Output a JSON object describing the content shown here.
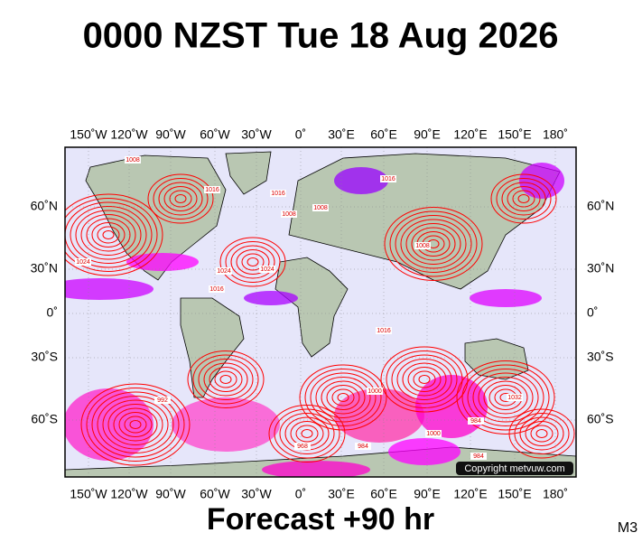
{
  "title": "0000 NZST Tue 18 Aug 2026",
  "lon_labels": [
    "150˚W",
    "120˚W",
    "90˚W",
    "60˚W",
    "30˚W",
    "0˚",
    "30˚E",
    "60˚E",
    "90˚E",
    "120˚E",
    "150˚E",
    "180˚"
  ],
  "lat_labels": [
    "60˚N",
    "30˚N",
    "0˚",
    "30˚S",
    "60˚S"
  ],
  "isobar_labels": [
    "1008",
    "1016",
    "1008",
    "1016",
    "1024",
    "1024",
    "1016",
    "1008",
    "1016",
    "1024",
    "1016",
    "1008",
    "1032",
    "1000",
    "984",
    "992",
    "968",
    "984",
    "1000",
    "984"
  ],
  "copyright": "Copyright metvuw.com",
  "footer": "Forecast +90 hr",
  "model": "M3"
}
